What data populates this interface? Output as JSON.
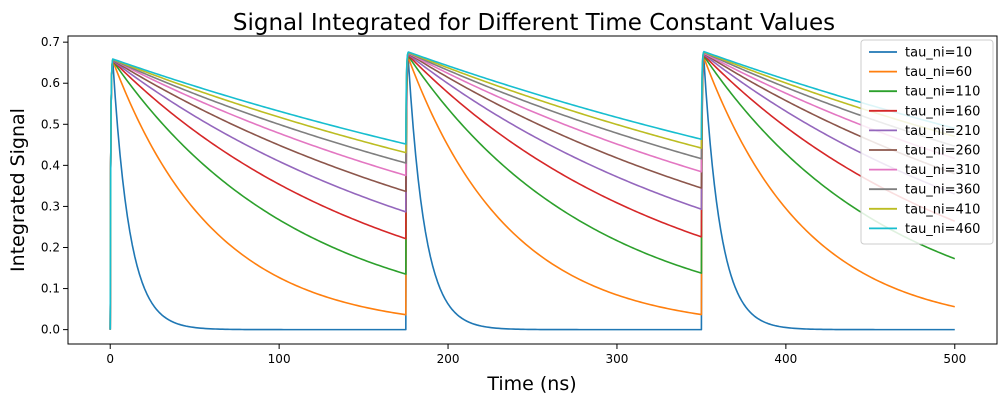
{
  "chart_data": {
    "type": "line",
    "title": "Signal Integrated for Different Time Constant Values",
    "xlabel": "Time (ns)",
    "ylabel": "Integrated Signal",
    "xlim": [
      -25,
      525
    ],
    "ylim": [
      -0.035,
      0.715
    ],
    "xticks": [
      0,
      100,
      200,
      300,
      400,
      500
    ],
    "yticks": [
      0.0,
      0.1,
      0.2,
      0.3,
      0.4,
      0.5,
      0.6,
      0.7
    ],
    "xtick_labels": [
      "0",
      "100",
      "200",
      "300",
      "400",
      "500"
    ],
    "ytick_labels": [
      "0.0",
      "0.1",
      "0.2",
      "0.3",
      "0.4",
      "0.5",
      "0.6",
      "0.7"
    ],
    "grid": false,
    "legend_position": "top-right",
    "pulses": [
      {
        "start": 0,
        "peak_time": 1.5,
        "end": 175
      },
      {
        "start": 175,
        "peak_time": 176.5,
        "end": 350
      },
      {
        "start": 350,
        "peak_time": 351.5,
        "end": 500
      }
    ],
    "series": [
      {
        "name": "tau_ni=10",
        "tau": 10,
        "color": "#1f77b4",
        "peaks": [
          0.655,
          0.655,
          0.655
        ],
        "ends": [
          0.0,
          0.0,
          0.0
        ]
      },
      {
        "name": "tau_ni=60",
        "tau": 60,
        "color": "#ff7f0e",
        "peaks": [
          0.655,
          0.662,
          0.662
        ],
        "ends": [
          0.037,
          0.037,
          0.056
        ]
      },
      {
        "name": "tau_ni=110",
        "tau": 110,
        "color": "#2ca02c",
        "peaks": [
          0.655,
          0.666,
          0.666
        ],
        "ends": [
          0.137,
          0.138,
          0.17
        ]
      },
      {
        "name": "tau_ni=160",
        "tau": 160,
        "color": "#d62728",
        "peaks": [
          0.655,
          0.668,
          0.668
        ],
        "ends": [
          0.224,
          0.225,
          null
        ]
      },
      {
        "name": "tau_ni=210",
        "tau": 210,
        "color": "#9467bd",
        "peaks": [
          0.655,
          0.67,
          0.67
        ],
        "ends": [
          0.29,
          0.293,
          null
        ]
      },
      {
        "name": "tau_ni=260",
        "tau": 260,
        "color": "#8c564b",
        "peaks": [
          0.656,
          0.672,
          0.672
        ],
        "ends": [
          0.34,
          0.346,
          null
        ]
      },
      {
        "name": "tau_ni=310",
        "tau": 310,
        "color": "#e377c2",
        "peaks": [
          0.657,
          0.673,
          0.673
        ],
        "ends": [
          0.378,
          0.384,
          null
        ]
      },
      {
        "name": "tau_ni=360",
        "tau": 360,
        "color": "#7f7f7f",
        "peaks": [
          0.657,
          0.674,
          0.675
        ],
        "ends": [
          0.408,
          0.418,
          null
        ]
      },
      {
        "name": "tau_ni=410",
        "tau": 410,
        "color": "#bcbd22",
        "peaks": [
          0.658,
          0.675,
          0.676
        ],
        "ends": [
          0.434,
          0.443,
          null
        ]
      },
      {
        "name": "tau_ni=460",
        "tau": 460,
        "color": "#17becf",
        "peaks": [
          0.659,
          0.676,
          0.677
        ],
        "ends": [
          0.455,
          0.466,
          null
        ]
      }
    ]
  }
}
